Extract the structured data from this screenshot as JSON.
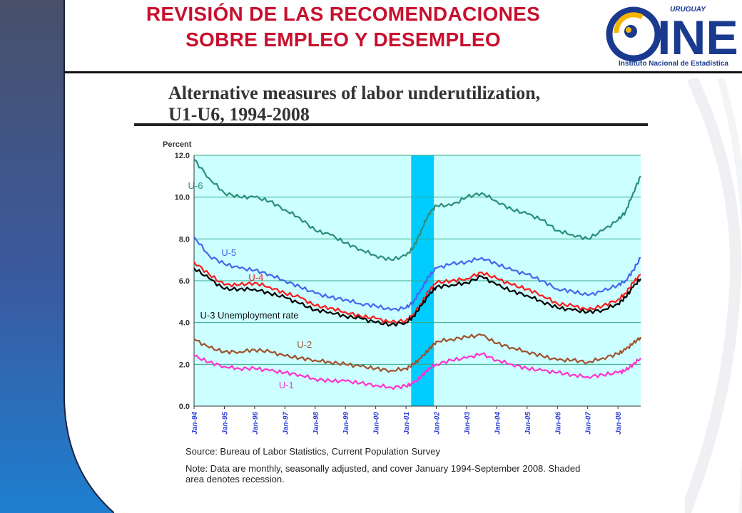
{
  "slide": {
    "title_line1": "REVISIÓN DE LAS RECOMENDACIONES",
    "title_line2": "SOBRE EMPLEO Y DESEMPLEO",
    "title_color": "#c8102e",
    "logo": {
      "top_text": "URUGUAY",
      "main_text": "INE",
      "caption": "Instituto Nacional de Estadística",
      "brand_color": "#1a3a8f",
      "accent_color": "#f5b400"
    }
  },
  "chart_data": {
    "type": "line",
    "title_line1": "Alternative measures of labor underutilization,",
    "title_line2": "U1-U6, 1994-2008",
    "ylabel": "Percent",
    "ylim": [
      0,
      12
    ],
    "yticks": [
      "0.0",
      "2.0",
      "4.0",
      "6.0",
      "8.0",
      "10.0",
      "12.0"
    ],
    "ytick_values": [
      0,
      2,
      4,
      6,
      8,
      10,
      12
    ],
    "xlim": [
      1994.0,
      2008.75
    ],
    "xticks": [
      "Jan-94",
      "Jan-95",
      "Jan-96",
      "Jan-97",
      "Jan-98",
      "Jan-99",
      "Jan-00",
      "Jan-01",
      "Jan-02",
      "Jan-03",
      "Jan-04",
      "Jan-05",
      "Jan-06",
      "Jan-07",
      "Jan-08"
    ],
    "xtick_values": [
      1994,
      1995,
      1996,
      1997,
      1998,
      1999,
      2000,
      2001,
      2002,
      2003,
      2004,
      2005,
      2006,
      2007,
      2008
    ],
    "grid": true,
    "plot_background": "#ccffff",
    "recession": {
      "start": 2001.17,
      "end": 2001.92,
      "color": "#00ccff"
    },
    "series": [
      {
        "name": "U-6",
        "label": "U-6",
        "color": "#2a8f7a",
        "x": [
          1994.0,
          1994.5,
          1995.0,
          1995.5,
          1996.0,
          1996.5,
          1997.0,
          1997.5,
          1998.0,
          1998.5,
          1999.0,
          1999.5,
          2000.0,
          2000.5,
          2001.0,
          2001.25,
          2001.5,
          2001.75,
          2002.0,
          2002.5,
          2003.0,
          2003.5,
          2004.0,
          2004.5,
          2005.0,
          2005.5,
          2006.0,
          2006.5,
          2007.0,
          2007.5,
          2008.0,
          2008.25,
          2008.5,
          2008.75
        ],
        "y": [
          11.8,
          10.9,
          10.2,
          10.0,
          10.0,
          9.8,
          9.4,
          9.0,
          8.4,
          8.2,
          7.8,
          7.5,
          7.2,
          7.0,
          7.2,
          7.6,
          8.4,
          9.2,
          9.6,
          9.6,
          10.0,
          10.2,
          9.8,
          9.4,
          9.2,
          8.9,
          8.4,
          8.2,
          8.0,
          8.4,
          8.9,
          9.3,
          10.2,
          11.0
        ]
      },
      {
        "name": "U-5",
        "label": "U-5",
        "color": "#4466ee",
        "x": [
          1994.0,
          1994.5,
          1995.0,
          1995.5,
          1996.0,
          1996.5,
          1997.0,
          1997.5,
          1998.0,
          1998.5,
          1999.0,
          1999.5,
          2000.0,
          2000.5,
          2001.0,
          2001.25,
          2001.5,
          2001.75,
          2002.0,
          2002.5,
          2003.0,
          2003.5,
          2004.0,
          2004.5,
          2005.0,
          2005.5,
          2006.0,
          2006.5,
          2007.0,
          2007.5,
          2008.0,
          2008.25,
          2008.5,
          2008.75
        ],
        "y": [
          8.1,
          7.2,
          6.8,
          6.6,
          6.5,
          6.3,
          6.0,
          5.7,
          5.4,
          5.2,
          5.1,
          4.9,
          4.8,
          4.6,
          4.7,
          5.0,
          5.6,
          6.2,
          6.6,
          6.8,
          6.9,
          7.1,
          6.8,
          6.5,
          6.3,
          6.0,
          5.6,
          5.5,
          5.3,
          5.5,
          5.8,
          6.0,
          6.5,
          7.1
        ]
      },
      {
        "name": "U-4",
        "label": "U-4",
        "color": "#ff1a1a",
        "x": [
          1994.0,
          1994.5,
          1995.0,
          1995.5,
          1996.0,
          1996.5,
          1997.0,
          1997.5,
          1998.0,
          1998.5,
          1999.0,
          1999.5,
          2000.0,
          2000.5,
          2001.0,
          2001.25,
          2001.5,
          2001.75,
          2002.0,
          2002.5,
          2003.0,
          2003.5,
          2004.0,
          2004.5,
          2005.0,
          2005.5,
          2006.0,
          2006.5,
          2007.0,
          2007.5,
          2008.0,
          2008.25,
          2008.5,
          2008.75
        ],
        "y": [
          6.9,
          6.3,
          5.8,
          5.8,
          5.9,
          5.7,
          5.4,
          5.2,
          4.8,
          4.7,
          4.5,
          4.3,
          4.2,
          4.0,
          4.1,
          4.4,
          4.9,
          5.5,
          5.9,
          6.0,
          6.1,
          6.4,
          6.1,
          5.8,
          5.6,
          5.3,
          4.9,
          4.8,
          4.6,
          4.8,
          5.1,
          5.4,
          5.9,
          6.3
        ]
      },
      {
        "name": "U-3 Unemployment rate",
        "label": "U-3 Unemployment rate",
        "color": "#000000",
        "x": [
          1994.0,
          1994.5,
          1995.0,
          1995.5,
          1996.0,
          1996.5,
          1997.0,
          1997.5,
          1998.0,
          1998.5,
          1999.0,
          1999.5,
          2000.0,
          2000.5,
          2001.0,
          2001.25,
          2001.5,
          2001.75,
          2002.0,
          2002.5,
          2003.0,
          2003.5,
          2004.0,
          2004.5,
          2005.0,
          2005.5,
          2006.0,
          2006.5,
          2007.0,
          2007.5,
          2008.0,
          2008.25,
          2008.5,
          2008.75
        ],
        "y": [
          6.6,
          6.1,
          5.6,
          5.6,
          5.6,
          5.4,
          5.2,
          4.9,
          4.6,
          4.5,
          4.3,
          4.2,
          4.0,
          3.9,
          4.0,
          4.3,
          4.8,
          5.3,
          5.7,
          5.8,
          5.9,
          6.2,
          5.8,
          5.5,
          5.3,
          5.0,
          4.7,
          4.6,
          4.5,
          4.6,
          4.9,
          5.2,
          5.7,
          6.1
        ]
      },
      {
        "name": "U-2",
        "label": "U-2",
        "color": "#a0522d",
        "x": [
          1994.0,
          1994.5,
          1995.0,
          1995.5,
          1996.0,
          1996.5,
          1997.0,
          1997.5,
          1998.0,
          1998.5,
          1999.0,
          1999.5,
          2000.0,
          2000.5,
          2001.0,
          2001.25,
          2001.5,
          2001.75,
          2002.0,
          2002.5,
          2003.0,
          2003.5,
          2004.0,
          2004.5,
          2005.0,
          2005.5,
          2006.0,
          2006.5,
          2007.0,
          2007.5,
          2008.0,
          2008.25,
          2008.5,
          2008.75
        ],
        "y": [
          3.2,
          2.8,
          2.6,
          2.6,
          2.7,
          2.6,
          2.4,
          2.3,
          2.2,
          2.1,
          2.0,
          1.9,
          1.8,
          1.7,
          1.8,
          2.0,
          2.3,
          2.7,
          3.1,
          3.2,
          3.3,
          3.4,
          3.0,
          2.8,
          2.6,
          2.4,
          2.2,
          2.2,
          2.1,
          2.3,
          2.5,
          2.7,
          3.0,
          3.3
        ]
      },
      {
        "name": "U-1",
        "label": "U-1",
        "color": "#ff33cc",
        "x": [
          1994.0,
          1994.5,
          1995.0,
          1995.5,
          1996.0,
          1996.5,
          1997.0,
          1997.5,
          1998.0,
          1998.5,
          1999.0,
          1999.5,
          2000.0,
          2000.5,
          2001.0,
          2001.25,
          2001.5,
          2001.75,
          2002.0,
          2002.5,
          2003.0,
          2003.5,
          2004.0,
          2004.5,
          2005.0,
          2005.5,
          2006.0,
          2006.5,
          2007.0,
          2007.5,
          2008.0,
          2008.25,
          2008.5,
          2008.75
        ],
        "y": [
          2.4,
          2.1,
          1.9,
          1.8,
          1.8,
          1.7,
          1.6,
          1.5,
          1.3,
          1.2,
          1.2,
          1.1,
          1.0,
          0.9,
          0.95,
          1.1,
          1.4,
          1.8,
          2.0,
          2.2,
          2.3,
          2.5,
          2.2,
          2.0,
          1.8,
          1.7,
          1.6,
          1.5,
          1.4,
          1.5,
          1.6,
          1.7,
          2.0,
          2.3
        ]
      }
    ],
    "source_note": "Source:  Bureau of Labor Statistics, Current Population Survey",
    "data_note_line1": "Note: Data are monthly, seasonally adjusted, and cover January 1994-September 2008.  Shaded",
    "data_note_line2": "area denotes recession."
  }
}
